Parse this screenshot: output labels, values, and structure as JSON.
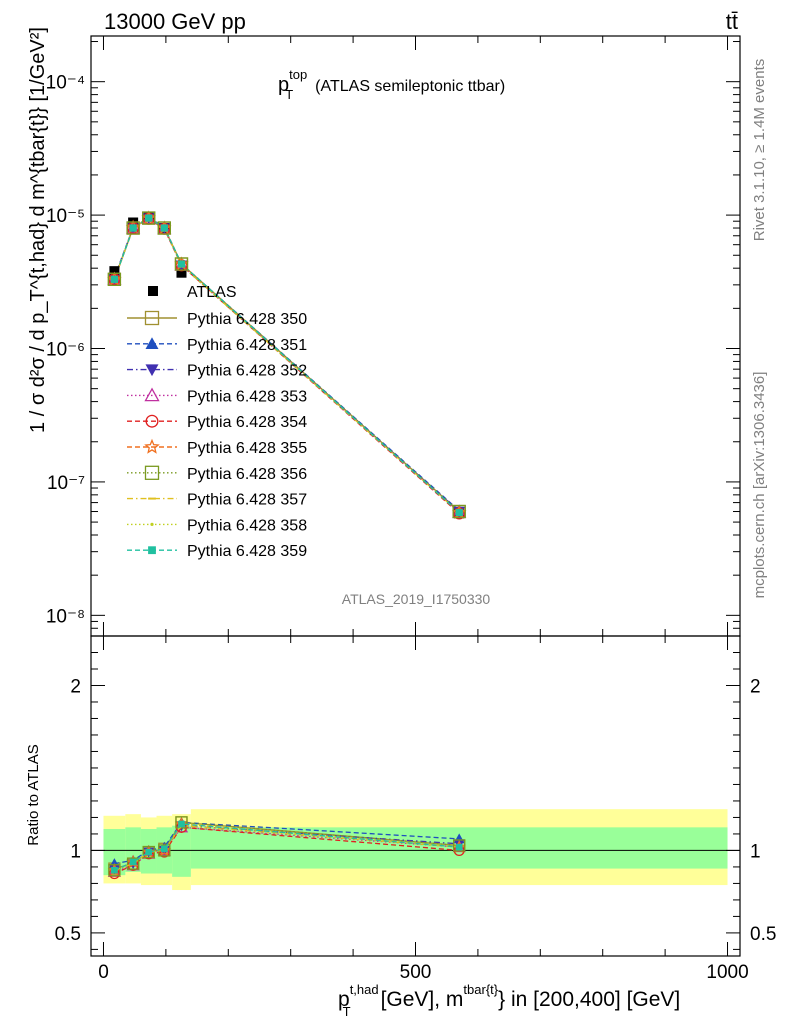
{
  "header": {
    "energy_label": "13000 GeV pp",
    "process_label": "tt̄"
  },
  "side_labels": {
    "rivet": "Rivet 3.1.10, ≥ 1.4M events",
    "mcplots": "mcplots.cern.ch [arXiv:1306.3436]"
  },
  "chart_data": [
    {
      "type": "line",
      "panel": "main",
      "title_main": "p",
      "title_sup": "top",
      "title_sub": "T",
      "title_rest": "(ATLAS semileptonic ttbar)",
      "ylabel": "1 / σ d²σ / d p_T^{t,had} d m^{tbar{t}} [1/GeV²]",
      "yscale": "log",
      "ylim": [
        7e-09,
        0.00022
      ],
      "xlim": [
        -20,
        1020
      ],
      "y_tick_labels": [
        "10⁻⁸",
        "10⁻⁷",
        "10⁻⁶",
        "10⁻⁵",
        "10⁻⁴"
      ],
      "watermark": "ATLAS_2019_I1750330",
      "legend_position": "middle-left",
      "data_series": {
        "name": "ATLAS",
        "x": [
          17.5,
          47.5,
          72.5,
          97.5,
          125,
          570
        ],
        "y": [
          3.8e-06,
          8.8e-06,
          9.6e-06,
          8e-06,
          3.7e-06,
          5.8e-08
        ]
      },
      "series": [
        {
          "name": "Pythia 6.428 350",
          "color": "#a09030",
          "marker": "open-square",
          "dash": "solid",
          "x": [
            17.5,
            47.5,
            72.5,
            97.5,
            125,
            570
          ],
          "y": [
            3.3e-06,
            8e-06,
            9.5e-06,
            8e-06,
            4.3e-06,
            6e-08
          ]
        },
        {
          "name": "Pythia 6.428 351",
          "color": "#1f4fbf",
          "marker": "triangle-up",
          "dash": "dashed",
          "x": [
            17.5,
            47.5,
            72.5,
            97.5,
            125,
            570
          ],
          "y": [
            3.4e-06,
            8.1e-06,
            9.6e-06,
            8.1e-06,
            4.3e-06,
            6.1e-08
          ]
        },
        {
          "name": "Pythia 6.428 352",
          "color": "#4030b0",
          "marker": "triangle-down",
          "dash": "dashdot",
          "x": [
            17.5,
            47.5,
            72.5,
            97.5,
            125,
            570
          ],
          "y": [
            3.3e-06,
            8e-06,
            9.5e-06,
            8e-06,
            4.2e-06,
            6e-08
          ]
        },
        {
          "name": "Pythia 6.428 353",
          "color": "#c030a0",
          "marker": "open-triangle",
          "dash": "dotted",
          "x": [
            17.5,
            47.5,
            72.5,
            97.5,
            125,
            570
          ],
          "y": [
            3.3e-06,
            8e-06,
            9.4e-06,
            7.9e-06,
            4.2e-06,
            5.9e-08
          ]
        },
        {
          "name": "Pythia 6.428 354",
          "color": "#e02020",
          "marker": "open-circle",
          "dash": "dashed",
          "x": [
            17.5,
            47.5,
            72.5,
            97.5,
            125,
            570
          ],
          "y": [
            3.3e-06,
            8e-06,
            9.4e-06,
            7.9e-06,
            4.2e-06,
            5.8e-08
          ]
        },
        {
          "name": "Pythia 6.428 355",
          "color": "#f07020",
          "marker": "open-star",
          "dash": "dashed",
          "x": [
            17.5,
            47.5,
            72.5,
            97.5,
            125,
            570
          ],
          "y": [
            3.3e-06,
            8.1e-06,
            9.5e-06,
            8e-06,
            4.3e-06,
            5.9e-08
          ]
        },
        {
          "name": "Pythia 6.428 356",
          "color": "#7a9a20",
          "marker": "open-square",
          "dash": "dotted",
          "x": [
            17.5,
            47.5,
            72.5,
            97.5,
            125,
            570
          ],
          "y": [
            3.3e-06,
            8e-06,
            9.5e-06,
            8e-06,
            4.3e-06,
            6e-08
          ]
        },
        {
          "name": "Pythia 6.428 357",
          "color": "#e0c020",
          "marker": "dash",
          "dash": "dashdot",
          "x": [
            17.5,
            47.5,
            72.5,
            97.5,
            125,
            570
          ],
          "y": [
            3.3e-06,
            8e-06,
            9.5e-06,
            8e-06,
            4.2e-06,
            5.9e-08
          ]
        },
        {
          "name": "Pythia 6.428 358",
          "color": "#c0d020",
          "marker": "dot",
          "dash": "dotted",
          "x": [
            17.5,
            47.5,
            72.5,
            97.5,
            125,
            570
          ],
          "y": [
            3.3e-06,
            8e-06,
            9.5e-06,
            8e-06,
            4.2e-06,
            5.9e-08
          ]
        },
        {
          "name": "Pythia 6.428 359",
          "color": "#20c0a0",
          "marker": "filled-square",
          "dash": "dashed",
          "x": [
            17.5,
            47.5,
            72.5,
            97.5,
            125,
            570
          ],
          "y": [
            3.3e-06,
            8e-06,
            9.5e-06,
            8e-06,
            4.3e-06,
            5.9e-08
          ]
        }
      ]
    },
    {
      "type": "line",
      "panel": "ratio",
      "ylabel": "Ratio to ATLAS",
      "xlabel_main": "p",
      "xlabel_sup": "t,had",
      "xlabel_sub": "T",
      "xlabel_mid": "[GeV], m",
      "xlabel_sup2": "tbar{t}",
      "xlabel_rest": "} in [200,400] [GeV]",
      "ylim": [
        0.36,
        2.3
      ],
      "xlim": [
        -20,
        1020
      ],
      "y_tick_labels": [
        "0.5",
        "1",
        "2"
      ],
      "x_tick_labels": [
        "0",
        "500",
        "1000"
      ],
      "reference_line": 1.0,
      "bands": {
        "edges": [
          0,
          35,
          60,
          85,
          110,
          140,
          1000
        ],
        "yellow": [
          [
            0.8,
            1.21
          ],
          [
            0.8,
            1.22
          ],
          [
            0.79,
            1.2
          ],
          [
            0.79,
            1.21
          ],
          [
            0.76,
            1.22
          ],
          [
            0.79,
            1.25
          ]
        ],
        "green": [
          [
            0.85,
            1.13
          ],
          [
            0.87,
            1.14
          ],
          [
            0.86,
            1.13
          ],
          [
            0.86,
            1.14
          ],
          [
            0.84,
            1.15
          ],
          [
            0.89,
            1.14
          ]
        ]
      },
      "series_ratios": [
        [
          0.89,
          0.92,
          0.99,
          1.01,
          1.17,
          1.03
        ],
        [
          0.92,
          0.94,
          1.0,
          1.02,
          1.17,
          1.07
        ],
        [
          0.89,
          0.92,
          0.99,
          1.0,
          1.15,
          1.04
        ],
        [
          0.87,
          0.91,
          0.98,
          1.0,
          1.14,
          1.02
        ],
        [
          0.86,
          0.91,
          0.98,
          0.99,
          1.14,
          1.0
        ],
        [
          0.88,
          0.93,
          0.99,
          1.0,
          1.16,
          1.02
        ],
        [
          0.88,
          0.92,
          0.99,
          1.0,
          1.17,
          1.03
        ],
        [
          0.88,
          0.92,
          0.99,
          1.0,
          1.15,
          1.02
        ],
        [
          0.88,
          0.92,
          0.99,
          1.0,
          1.16,
          1.02
        ],
        [
          0.88,
          0.93,
          0.99,
          1.01,
          1.16,
          1.02
        ]
      ]
    }
  ]
}
